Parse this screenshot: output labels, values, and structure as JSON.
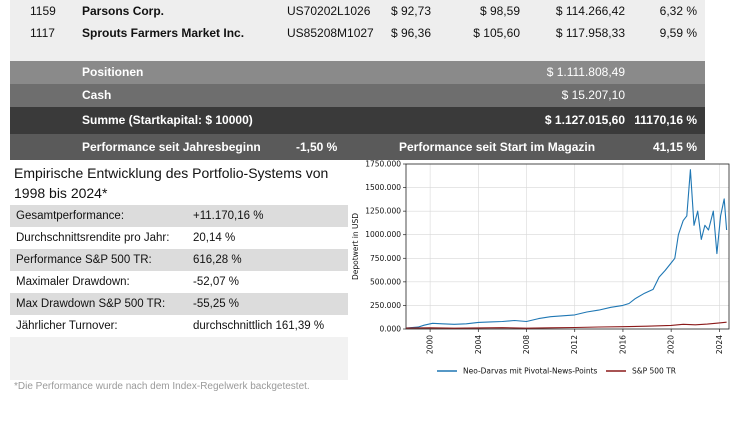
{
  "table": {
    "rows": [
      {
        "id": "1159",
        "name": "Parsons Corp.",
        "isin": "US70202L1026",
        "buy": "$ 92,73",
        "price": "$ 98,59",
        "value": "$ 114.266,42",
        "perf": "6,32 %"
      },
      {
        "id": "1117",
        "name": "Sprouts Farmers Market Inc.",
        "isin": "US85208M1027",
        "buy": "$ 96,36",
        "price": "$ 105,60",
        "value": "$ 117.958,33",
        "perf": "9,59 %"
      }
    ],
    "positions_label": "Positionen",
    "positions_value": "$ 1.111.808,49",
    "cash_label": "Cash",
    "cash_value": "$ 15.207,10",
    "total_label": "Summe (Startkapital: $ 10000)",
    "total_value": "$ 1.127.015,60",
    "total_pct": "11170,16 %",
    "ytd_label": "Performance seit Jahresbeginn",
    "ytd_value": "-1,50 %",
    "since_start_label": "Performance seit Start im Magazin",
    "since_start_value": "41,15 %"
  },
  "stats": {
    "title": "Empirische Entwicklung des Portfolio-Systems von 1998 bis 2024*",
    "rows": [
      {
        "label": "Gesamtperformance:",
        "value": "+11.170,16 %"
      },
      {
        "label": "Durchschnittsrendite pro Jahr:",
        "value": "20,14 %"
      },
      {
        "label": "Performance S&P 500 TR:",
        "value": "616,28 %"
      },
      {
        "label": "Maximaler Drawdown:",
        "value": "-52,07 %"
      },
      {
        "label": "Max Drawdown S&P 500 TR:",
        "value": "-55,25 %"
      },
      {
        "label": "Jährlicher Turnover:",
        "value": "durchschnittlich 161,39 %"
      }
    ],
    "footnote": "*Die Performance wurde nach dem Index-Regelwerk backgetestet."
  },
  "colors": {
    "table_row_bg": "#eeeeee",
    "positions_bg": "#8a8a8a",
    "cash_bg": "#6e6e6e",
    "total_bg": "#3a3a3a",
    "perf_bg": "#5a5a5a",
    "darvas_line": "#1f77b4",
    "sp500_line": "#8b1a1a"
  },
  "chart_data": {
    "type": "line",
    "title": "",
    "xlabel": "",
    "ylabel": "Depotwert in USD",
    "xlim": [
      1998,
      2024.8
    ],
    "ylim": [
      0,
      1750000
    ],
    "xticks": [
      "2000",
      "2004",
      "2008",
      "2012",
      "2016",
      "2020",
      "2024"
    ],
    "yticks": [
      "0.000",
      "250.000",
      "500.000",
      "750.000",
      "1000.000",
      "1250.000",
      "1500.000",
      "1750.000"
    ],
    "grid": true,
    "legend_position": "bottom",
    "series": [
      {
        "name": "Neo-Darvas mit Pivotal-News-Points",
        "x": [
          1998.0,
          1999.0,
          1999.5,
          2000.2,
          2001.0,
          2002.0,
          2003.0,
          2004.0,
          2005.0,
          2006.0,
          2007.0,
          2008.0,
          2009.0,
          2010.0,
          2011.0,
          2012.0,
          2013.0,
          2014.0,
          2015.0,
          2016.0,
          2016.5,
          2017.0,
          2017.8,
          2018.5,
          2019.0,
          2019.5,
          2020.0,
          2020.3,
          2020.6,
          2021.0,
          2021.3,
          2021.6,
          2021.9,
          2022.2,
          2022.5,
          2022.8,
          2023.1,
          2023.5,
          2023.8,
          2024.1,
          2024.4,
          2024.6
        ],
        "y": [
          10000,
          20000,
          40000,
          60000,
          55000,
          50000,
          55000,
          70000,
          75000,
          80000,
          90000,
          80000,
          110000,
          130000,
          140000,
          150000,
          180000,
          200000,
          230000,
          250000,
          270000,
          320000,
          380000,
          420000,
          550000,
          620000,
          700000,
          750000,
          1000000,
          1150000,
          1200000,
          1690000,
          1100000,
          1250000,
          950000,
          1100000,
          1050000,
          1250000,
          800000,
          1200000,
          1380000,
          1050000
        ]
      },
      {
        "name": "S&P 500 TR",
        "x": [
          1998,
          2000,
          2002,
          2004,
          2006,
          2008,
          2010,
          2012,
          2014,
          2016,
          2018,
          2020,
          2021,
          2022,
          2023,
          2024,
          2024.6
        ],
        "y": [
          10000,
          13000,
          9000,
          12000,
          14000,
          9000,
          13000,
          16000,
          21000,
          24000,
          30000,
          38000,
          50000,
          45000,
          52000,
          65000,
          72000
        ]
      }
    ]
  }
}
